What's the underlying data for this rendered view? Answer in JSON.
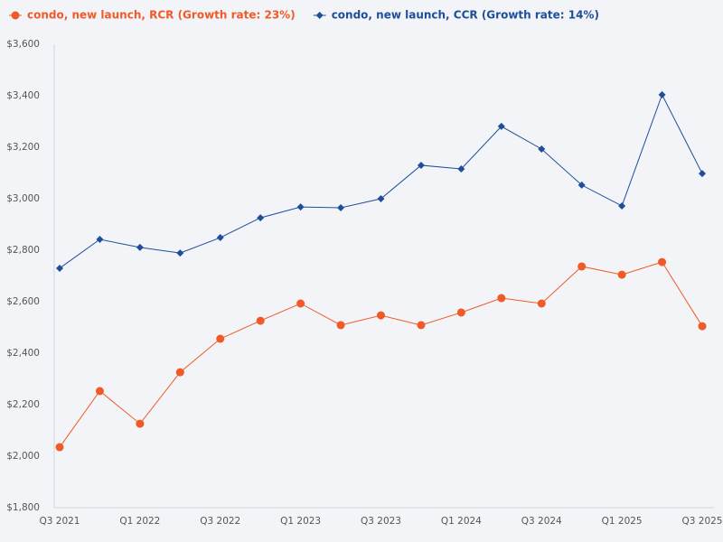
{
  "chart_data": {
    "type": "line",
    "categories": [
      "Q3 2021",
      null,
      "Q1 2022",
      null,
      "Q3 2022",
      null,
      "Q1 2023",
      null,
      "Q3 2023",
      null,
      "Q1 2024",
      null,
      "Q3 2024",
      null,
      "Q1 2025",
      null,
      "Q3 2025"
    ],
    "series": [
      {
        "name": "condo, new launch, RCR (Growth rate: 23%)",
        "color": "#f05a28",
        "marker": "circle",
        "values": [
          2035,
          2253,
          2126,
          2326,
          2456,
          2526,
          2593,
          2509,
          2547,
          2509,
          2558,
          2614,
          2593,
          2737,
          2705,
          2754,
          2505
        ]
      },
      {
        "name": "condo, new launch, CCR (Growth rate: 14%)",
        "color": "#1f4e99",
        "marker": "diamond",
        "values": [
          2730,
          2842,
          2811,
          2789,
          2849,
          2926,
          2968,
          2965,
          3000,
          3130,
          3116,
          3281,
          3193,
          3053,
          2972,
          3404,
          3098
        ]
      }
    ],
    "ylim": [
      1800,
      3600
    ],
    "yticks": [
      {
        "value": 1800,
        "label": "$1,800"
      },
      {
        "value": 2000,
        "label": "$2,000"
      },
      {
        "value": 2200,
        "label": "$2,200"
      },
      {
        "value": 2400,
        "label": "$2,400"
      },
      {
        "value": 2600,
        "label": "$2,600"
      },
      {
        "value": 2800,
        "label": "$2,800"
      },
      {
        "value": 3000,
        "label": "$3,000"
      },
      {
        "value": 3200,
        "label": "$3,200"
      },
      {
        "value": 3400,
        "label": "$3,400"
      },
      {
        "value": 3600,
        "label": "$3,600"
      }
    ],
    "grid": false
  }
}
